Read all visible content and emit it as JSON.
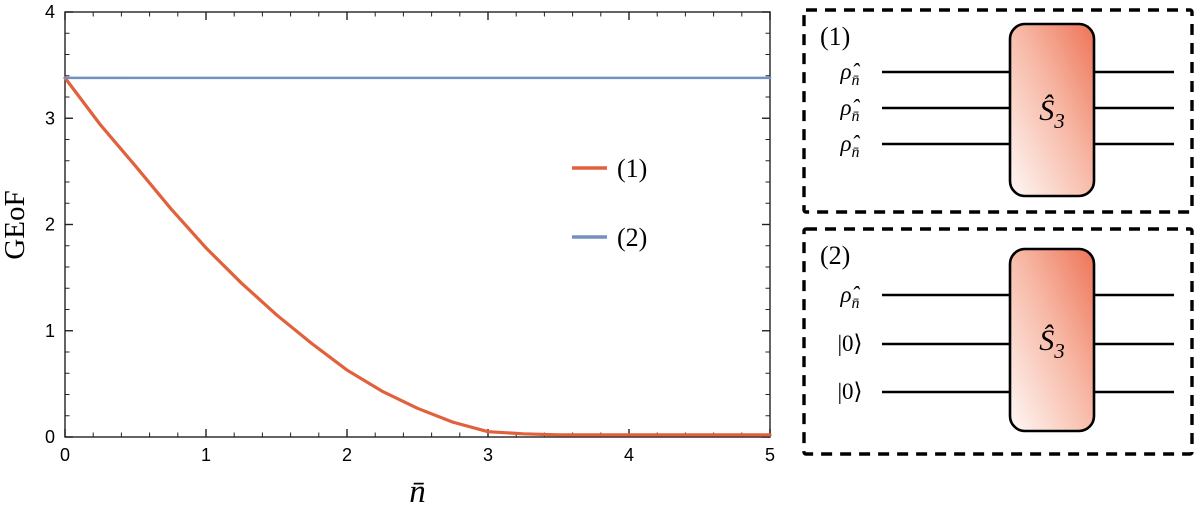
{
  "chart_data": {
    "type": "line",
    "title": "",
    "xlabel": "n̄",
    "ylabel": "GEoF",
    "xlim": [
      0,
      5
    ],
    "ylim": [
      0,
      4
    ],
    "x_ticks": [
      0,
      1,
      2,
      3,
      4,
      5
    ],
    "y_ticks": [
      0,
      1,
      2,
      3,
      4
    ],
    "grid": false,
    "legend_position": "inside-right",
    "frame_color": "#222222",
    "series": [
      {
        "name": "(1)",
        "color": "#E0613B",
        "width": 3.2,
        "x": [
          0,
          0.25,
          0.5,
          0.75,
          1,
          1.25,
          1.5,
          1.75,
          2,
          2.25,
          2.5,
          2.75,
          3,
          3.25,
          3.5,
          3.75,
          4,
          4.25,
          4.5,
          4.75,
          5
        ],
        "y": [
          3.38,
          2.94,
          2.55,
          2.15,
          1.78,
          1.45,
          1.15,
          0.88,
          0.63,
          0.43,
          0.27,
          0.14,
          0.05,
          0.03,
          0.02,
          0.02,
          0.02,
          0.02,
          0.02,
          0.02,
          0.02
        ]
      },
      {
        "name": "(2)",
        "color": "#7490C1",
        "width": 2.6,
        "x": [
          0,
          5
        ],
        "y": [
          3.38,
          3.38
        ]
      }
    ]
  },
  "panel": {
    "gate_gradient": {
      "from": "#FEF8F6",
      "mid": "#F7B7A4",
      "to": "#ED7457"
    },
    "circuits": [
      {
        "label": "(1)",
        "gate_base": "Ŝ",
        "gate_sub": "3",
        "inputs": [
          {
            "base": "ρ̂",
            "sub": "n̄"
          },
          {
            "base": "ρ̂",
            "sub": "n̄"
          },
          {
            "base": "ρ̂",
            "sub": "n̄"
          }
        ]
      },
      {
        "label": "(2)",
        "gate_base": "Ŝ",
        "gate_sub": "3",
        "inputs": [
          {
            "base": "ρ̂",
            "sub": "n̄"
          },
          {
            "base": "|0⟩",
            "sub": ""
          },
          {
            "base": "|0⟩",
            "sub": ""
          }
        ]
      }
    ]
  }
}
